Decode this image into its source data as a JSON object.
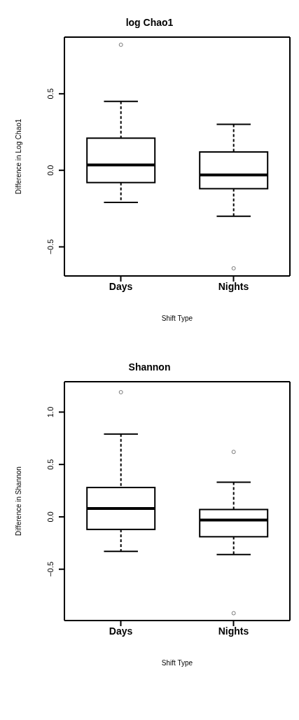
{
  "chart_data": [
    {
      "type": "box",
      "title": "log Chao1",
      "xlabel": "Shift Type",
      "ylabel": "Difference in Log Chao1",
      "categories": [
        "Days",
        "Nights"
      ],
      "ylim": [
        -0.69,
        0.87
      ],
      "yticks": [
        {
          "value": -0.5,
          "label": "−0.5"
        },
        {
          "value": 0,
          "label": "0.0"
        },
        0.5
      ],
      "boxes": [
        {
          "low": -0.21,
          "q1": -0.08,
          "median": 0.035,
          "q3": 0.21,
          "high": 0.45,
          "outliers": [
            0.82
          ]
        },
        {
          "low": -0.3,
          "q1": -0.12,
          "median": -0.03,
          "q3": 0.12,
          "high": 0.3,
          "outliers": [
            -0.64
          ]
        }
      ]
    },
    {
      "type": "box",
      "title": "Shannon",
      "xlabel": "Shift Type",
      "ylabel": "Difference in Shannon",
      "categories": [
        "Days",
        "Nights"
      ],
      "ylim": [
        -0.99,
        1.29
      ],
      "yticks": [
        {
          "value": -0.5,
          "label": "−0.5"
        },
        {
          "value": 0,
          "label": "0.0"
        },
        0.5,
        {
          "value": 1,
          "label": "1.0"
        }
      ],
      "boxes": [
        {
          "low": -0.33,
          "q1": -0.12,
          "median": 0.08,
          "q3": 0.28,
          "high": 0.79,
          "outliers": [
            1.19
          ]
        },
        {
          "low": -0.36,
          "q1": -0.19,
          "median": -0.03,
          "q3": 0.07,
          "high": 0.33,
          "outliers": [
            0.62,
            -0.92
          ]
        }
      ]
    }
  ]
}
